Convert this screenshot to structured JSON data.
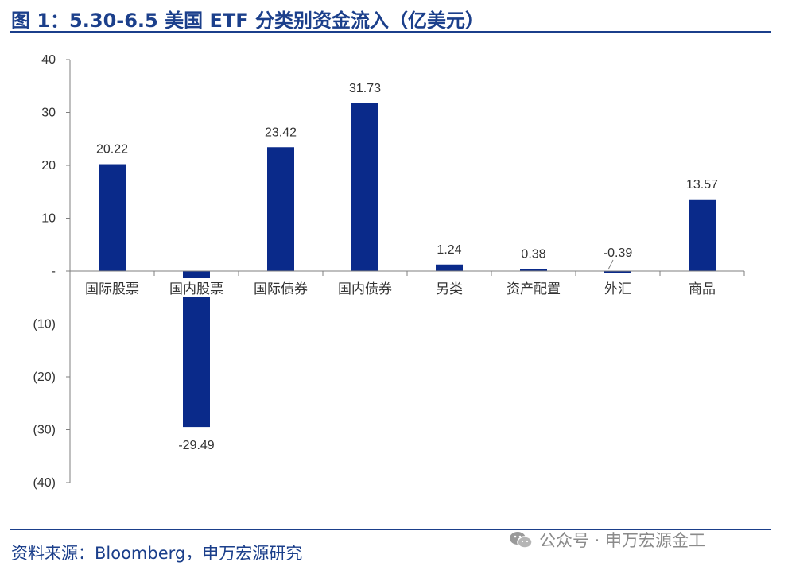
{
  "header": {
    "title": "图 1：5.30-6.5 美国 ETF 分类别资金流入（亿美元）"
  },
  "footer": {
    "source": "资料来源：Bloomberg，申万宏源研究",
    "watermark": "公众号 · 申万宏源金工"
  },
  "colors": {
    "accent": "#1b3f8b",
    "bar": "#0a2a8a"
  },
  "chart_data": {
    "type": "bar",
    "title": "5.30-6.5 美国 ETF 分类别资金流入（亿美元）",
    "categories": [
      "国际股票",
      "国内股票",
      "国际债券",
      "国内债券",
      "另类",
      "资产配置",
      "外汇",
      "商品"
    ],
    "values": [
      20.22,
      -29.49,
      23.42,
      31.73,
      1.24,
      0.38,
      -0.39,
      13.57
    ],
    "data_labels": [
      "20.22",
      "-29.49",
      "23.42",
      "31.73",
      "1.24",
      "0.38",
      "-0.39",
      "13.57"
    ],
    "ylim": [
      -40,
      40
    ],
    "yticks": [
      40,
      30,
      20,
      10,
      0,
      -10,
      -20,
      -30,
      -40
    ],
    "ytick_labels": [
      "40",
      "30",
      "20",
      "10",
      "-",
      "(10)",
      "(20)",
      "(30)",
      "(40)"
    ],
    "xlabel": "",
    "ylabel": "",
    "grid": false,
    "legend": "none"
  }
}
